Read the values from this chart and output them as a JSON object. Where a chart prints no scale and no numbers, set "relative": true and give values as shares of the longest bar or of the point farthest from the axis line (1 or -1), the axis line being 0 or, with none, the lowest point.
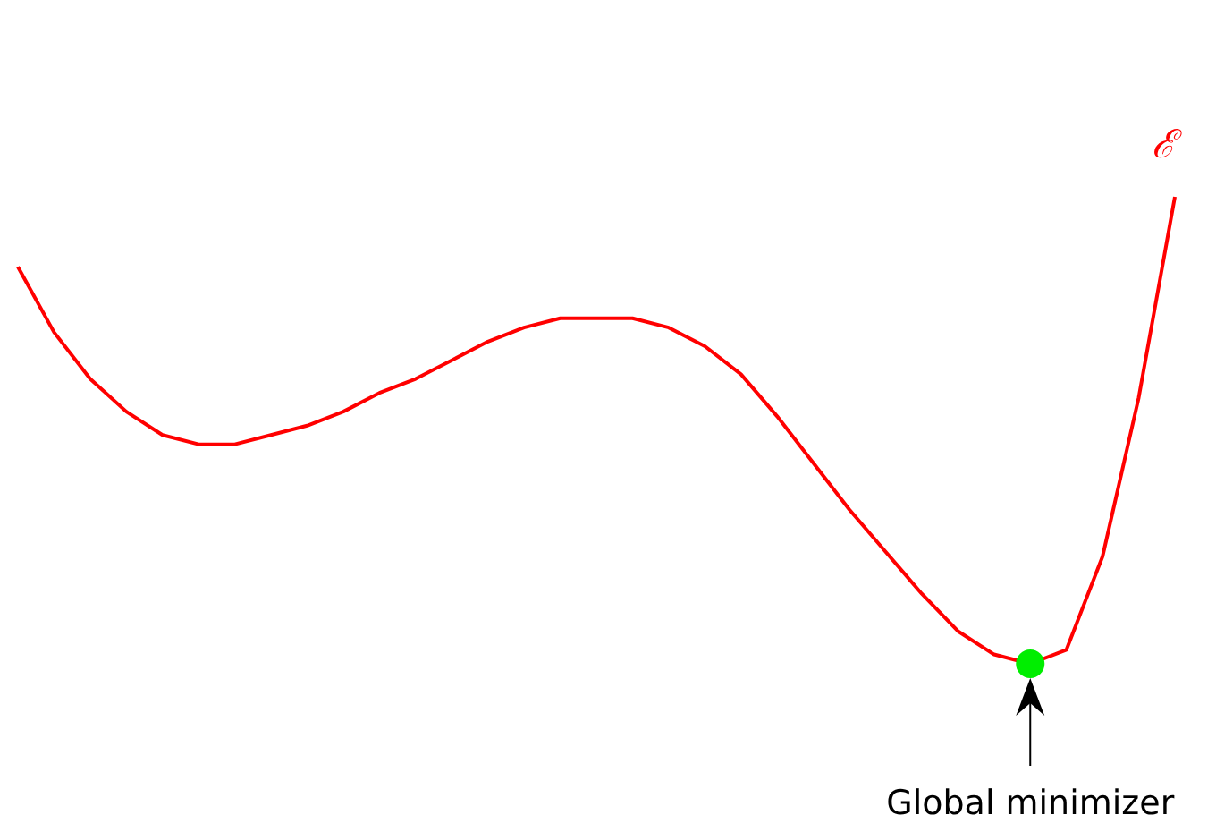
{
  "chart_data": {
    "type": "line",
    "relative": true,
    "legend": false,
    "marker": "none",
    "categories": [
      null,
      null,
      null,
      null,
      null,
      null,
      null,
      null,
      null,
      null,
      null,
      null,
      null,
      null,
      null,
      null,
      null,
      null,
      null,
      null,
      null,
      null,
      null,
      null,
      null,
      null,
      null,
      null,
      null,
      null,
      null,
      null,
      null
    ],
    "series": [
      {
        "name": "ℰ",
        "color": "#ff0000",
        "values": [
          0.85,
          0.71,
          0.61,
          0.54,
          0.49,
          0.47,
          0.47,
          0.49,
          0.51,
          0.54,
          0.58,
          0.61,
          0.65,
          0.69,
          0.72,
          0.74,
          0.74,
          0.74,
          0.72,
          0.68,
          0.62,
          0.53,
          0.43,
          0.33,
          0.24,
          0.15,
          0.07,
          0.02,
          0,
          0.03,
          0.23,
          0.57,
          1
        ]
      }
    ],
    "annotations": [
      "Global minimizer"
    ]
  }
}
